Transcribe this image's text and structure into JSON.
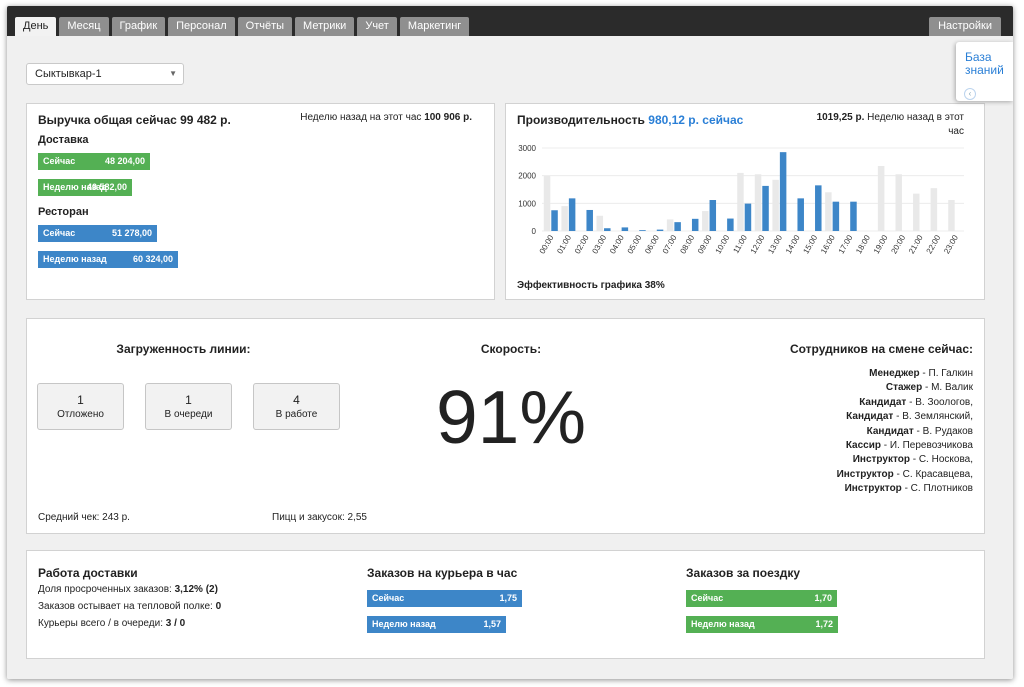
{
  "tabs": [
    {
      "label": "День"
    },
    {
      "label": "Месяц"
    },
    {
      "label": "График"
    },
    {
      "label": "Персонал"
    },
    {
      "label": "Отчёты"
    },
    {
      "label": "Метрики"
    },
    {
      "label": "Учет"
    },
    {
      "label": "Маркетинг"
    }
  ],
  "active_tab": "День",
  "settings_label": "Настройки",
  "knowledge_base": {
    "line1": "База",
    "line2": "знаний"
  },
  "store_select": {
    "value": "Сыктывкар-1"
  },
  "revenue": {
    "title": "Выручка общая сейчас 99 482 р.",
    "week_ago_label": "Неделю назад на этот час",
    "week_ago_value": "100 906 р.",
    "delivery_title": "Доставка",
    "delivery_bars": [
      {
        "label": "Сейчас",
        "value": "48 204,00",
        "amount": 48204
      },
      {
        "label": "Неделю назад",
        "value": "40 582,00",
        "amount": 40582
      }
    ],
    "restaurant_title": "Ресторан",
    "restaurant_bars": [
      {
        "label": "Сейчас",
        "value": "51 278,00",
        "amount": 51278
      },
      {
        "label": "Неделю назад",
        "value": "60 324,00",
        "amount": 60324
      }
    ],
    "colors": {
      "delivery": "#54b054",
      "restaurant": "#3d86c8"
    }
  },
  "productivity": {
    "title": "Производительность",
    "value": "980,12 р. сейчас",
    "week_ago_value": "1019,25 р.",
    "week_ago_line1": "Неделю назад в этот",
    "week_ago_line2": "час",
    "efficiency": "Эффективность графика 38%"
  },
  "chart_data": {
    "type": "bar",
    "categories": [
      "00:00",
      "01:00",
      "02:00",
      "03:00",
      "04:00",
      "05:00",
      "06:00",
      "07:00",
      "08:00",
      "09:00",
      "10:00",
      "11:00",
      "12:00",
      "13:00",
      "14:00",
      "15:00",
      "16:00",
      "17:00",
      "18:00",
      "19:00",
      "20:00",
      "21:00",
      "22:00",
      "23:00"
    ],
    "series": [
      {
        "values": [
          2000,
          900,
          0,
          550,
          0,
          0,
          0,
          420,
          0,
          720,
          0,
          2100,
          2050,
          1850,
          0,
          0,
          1400,
          0,
          0,
          2350,
          2050,
          1350,
          1550,
          1120
        ],
        "color": "#e9e9e9"
      },
      {
        "values": [
          750,
          1180,
          760,
          100,
          130,
          30,
          50,
          320,
          440,
          1120,
          450,
          990,
          1630,
          2850,
          1180,
          1650,
          1060,
          1060,
          0,
          0,
          0,
          0,
          0,
          0
        ],
        "color": "#3d86c8"
      }
    ],
    "ylim": [
      0,
      3000
    ],
    "yticks": [
      0,
      1000,
      2000,
      3000
    ],
    "grid": true
  },
  "line_load": {
    "title": "Загруженность линии:",
    "boxes": [
      {
        "count": "1",
        "label": "Отложено"
      },
      {
        "count": "1",
        "label": "В очереди"
      },
      {
        "count": "4",
        "label": "В работе"
      }
    ],
    "avg_check": "Средний чек: 243 р.",
    "pizza_snacks": "Пицц и закусок: 2,55"
  },
  "speed": {
    "title": "Скорость:",
    "value": "91%"
  },
  "staff": {
    "title": "Сотрудников на смене сейчас:",
    "list": [
      {
        "role": "Менеджер",
        "name": " - П. Галкин"
      },
      {
        "role": "Стажер",
        "name": " - М. Валик"
      },
      {
        "role": "Кандидат",
        "name": " - В. Зоологов,"
      },
      {
        "role": "Кандидат",
        "name": " - В. Землянский,"
      },
      {
        "role": "Кандидат",
        "name": " - В. Рудаков"
      },
      {
        "role": "Кассир",
        "name": " - И. Перевозчикова"
      },
      {
        "role": "Инструктор",
        "name": " - С. Носкова,"
      },
      {
        "role": "Инструктор",
        "name": " - С. Красавцева,"
      },
      {
        "role": "Инструктор",
        "name": " - С. Плотников"
      }
    ]
  },
  "delivery_work": {
    "title": "Работа доставки",
    "overdue_label": "Доля просроченных заказов: ",
    "overdue_value": "3,12% (2)",
    "cooling_label": "Заказов остывает на тепловой полке: ",
    "cooling_value": "0",
    "couriers_label": "Курьеры всего / в очереди: ",
    "couriers_value": "3 / 0"
  },
  "orders_per_courier": {
    "title": "Заказов на курьера в час",
    "bars": [
      {
        "label": "Сейчас",
        "value": "1,75",
        "amount": 1.75
      },
      {
        "label": "Неделю назад",
        "value": "1,57",
        "amount": 1.57
      }
    ]
  },
  "orders_per_trip": {
    "title": "Заказов за поездку",
    "bars": [
      {
        "label": "Сейчас",
        "value": "1,70",
        "amount": 1.7
      },
      {
        "label": "Неделю назад",
        "value": "1,72",
        "amount": 1.72
      }
    ]
  }
}
